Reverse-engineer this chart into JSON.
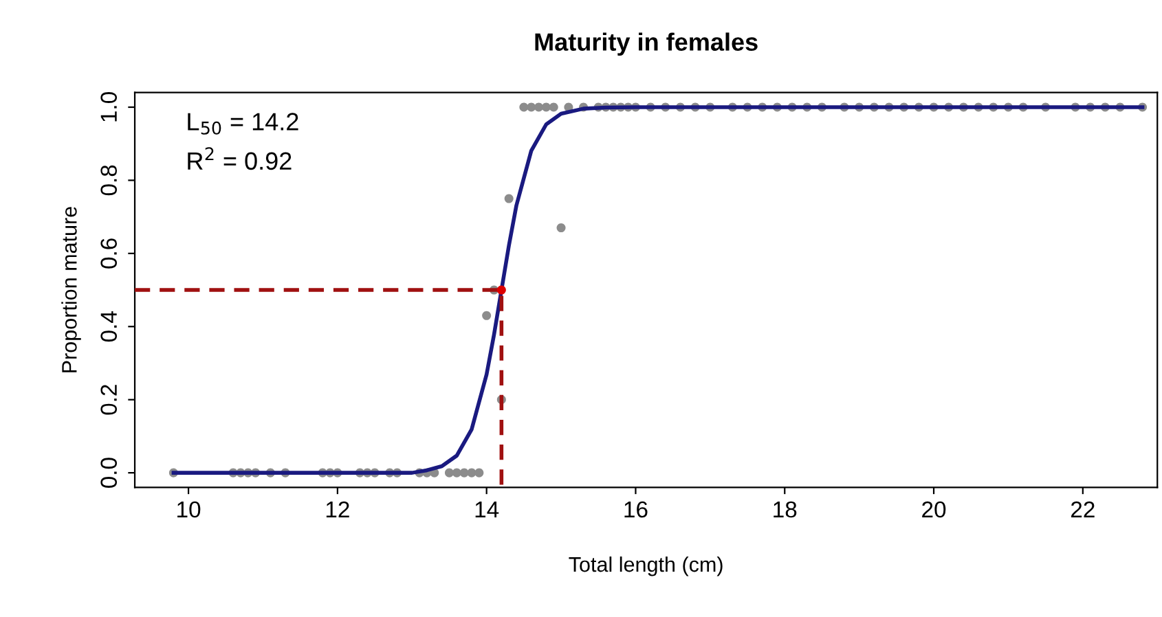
{
  "chart_data": {
    "type": "scatter",
    "title": "Maturity in females",
    "xlabel": "Total length (cm)",
    "ylabel": "Proportion mature",
    "annotations": [
      "L$_{50}$ = 14.2",
      "R$^{2}$ = 0.92"
    ],
    "xlim": [
      9.28,
      23.0
    ],
    "ylim": [
      -0.04,
      1.04
    ],
    "xticks": [
      10,
      12,
      14,
      16,
      18,
      20,
      22
    ],
    "yticks": [
      {
        "value": 0,
        "label": "0.0"
      },
      {
        "value": 0.2,
        "label": "0.2"
      },
      {
        "value": 0.4,
        "label": "0.4"
      },
      {
        "value": 0.6,
        "label": "0.6"
      },
      {
        "value": 0.8,
        "label": "0.8"
      },
      {
        "value": 1,
        "label": "1.0"
      }
    ],
    "grid": false,
    "series": [
      {
        "color": "#8c8c8c",
        "marker": "circle",
        "x": [
          9.8,
          10.6,
          10.7,
          10.8,
          10.9,
          11.1,
          11.3,
          11.8,
          11.9,
          12.0,
          12.3,
          12.4,
          12.5,
          12.7,
          12.8,
          13.1,
          13.2,
          13.3,
          13.5,
          13.6,
          13.7,
          13.8,
          13.9,
          14.0,
          14.1,
          14.2,
          14.3,
          15.0,
          14.5,
          14.6,
          14.7,
          14.8,
          14.9,
          15.1,
          15.3,
          15.5,
          15.6,
          15.7,
          15.8,
          15.9,
          16.0,
          16.2,
          16.4,
          16.6,
          16.8,
          17.0,
          17.3,
          17.5,
          17.7,
          17.9,
          18.1,
          18.3,
          18.5,
          18.8,
          19.0,
          19.2,
          19.4,
          19.6,
          19.8,
          20.0,
          20.2,
          20.4,
          20.6,
          20.8,
          21.0,
          21.2,
          21.5,
          21.9,
          22.1,
          22.3,
          22.5,
          22.8
        ],
        "values": [
          0,
          0,
          0,
          0,
          0,
          0,
          0,
          0,
          0,
          0,
          0,
          0,
          0,
          0,
          0,
          0,
          0,
          0,
          0,
          0,
          0,
          0,
          0,
          0.43,
          0.5,
          0.2,
          0.75,
          0.67,
          1,
          1,
          1,
          1,
          1,
          1,
          1,
          1,
          1,
          1,
          1,
          1,
          1,
          1,
          1,
          1,
          1,
          1,
          1,
          1,
          1,
          1,
          1,
          1,
          1,
          1,
          1,
          1,
          1,
          1,
          1,
          1,
          1,
          1,
          1,
          1,
          1,
          1,
          1,
          1,
          1,
          1,
          1,
          1
        ]
      },
      {
        "type": "line",
        "color": "#1a1a80",
        "line_style": "solid",
        "x": [
          9.8,
          13.0,
          13.2,
          13.4,
          13.6,
          13.8,
          14.0,
          14.1,
          14.2,
          14.3,
          14.4,
          14.6,
          14.8,
          15.0,
          15.3,
          15.6,
          16.0,
          22.8
        ],
        "values": [
          0,
          0,
          0.007,
          0.018,
          0.047,
          0.119,
          0.269,
          0.378,
          0.5,
          0.622,
          0.731,
          0.881,
          0.953,
          0.982,
          0.996,
          0.999,
          1,
          1
        ]
      },
      {
        "type": "line",
        "color": "#a01010",
        "line_style": "dashed",
        "x": [
          9.28,
          14.2,
          14.2
        ],
        "values": [
          0.5,
          0.5,
          -0.04
        ]
      },
      {
        "color": "#dd0000",
        "marker": "circle",
        "x": [
          14.2
        ],
        "values": [
          0.5
        ]
      }
    ]
  }
}
